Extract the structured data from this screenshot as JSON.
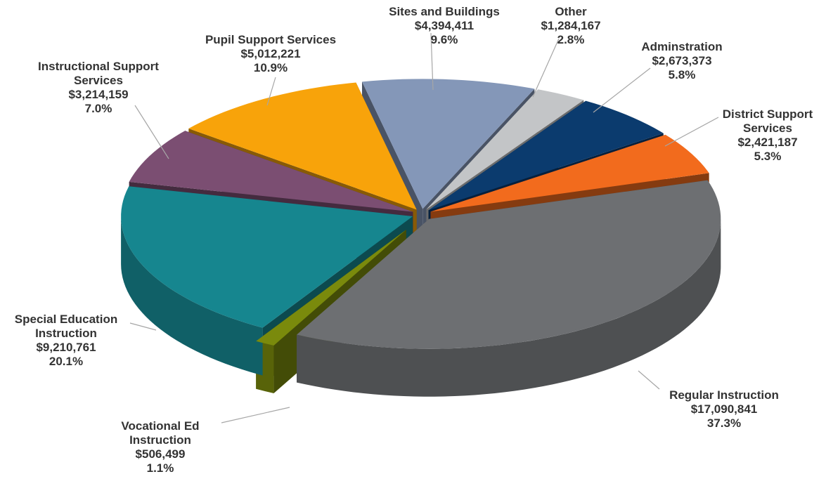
{
  "chart_data": {
    "type": "pie",
    "title": "",
    "slices": [
      {
        "label_lines": [
          "Sites and Buildings"
        ],
        "amount": "$4,394,411",
        "percent": "9.6%",
        "value": 4394411,
        "color": "#8497b8"
      },
      {
        "label_lines": [
          "Other"
        ],
        "amount": "$1,284,167",
        "percent": "2.8%",
        "value": 1284167,
        "color": "#c3c5c7"
      },
      {
        "label_lines": [
          "Adminstration"
        ],
        "amount": "$2,673,373",
        "percent": "5.8%",
        "value": 2673373,
        "color": "#0b3b6e"
      },
      {
        "label_lines": [
          "District Support",
          "Services"
        ],
        "amount": "$2,421,187",
        "percent": "5.3%",
        "value": 2421187,
        "color": "#f26b1d"
      },
      {
        "label_lines": [
          "Regular Instruction"
        ],
        "amount": "$17,090,841",
        "percent": "37.3%",
        "value": 17090841,
        "color": "#6d6f72"
      },
      {
        "label_lines": [
          "Vocational Ed",
          "Instruction"
        ],
        "amount": "$506,499",
        "percent": "1.1%",
        "value": 506499,
        "color": "#7a8a0c"
      },
      {
        "label_lines": [
          "Special Education",
          "Instruction"
        ],
        "amount": "$9,210,761",
        "percent": "20.1%",
        "value": 9210761,
        "color": "#16868f"
      },
      {
        "label_lines": [
          "Instructional Support",
          "Services"
        ],
        "amount": "$3,214,159",
        "percent": "7.0%",
        "value": 3214159,
        "color": "#7b4e72"
      },
      {
        "label_lines": [
          "Pupil Support Services"
        ],
        "amount": "$5,012,221",
        "percent": "10.9%",
        "value": 5012221,
        "color": "#f8a30a"
      }
    ],
    "legend": "none"
  }
}
